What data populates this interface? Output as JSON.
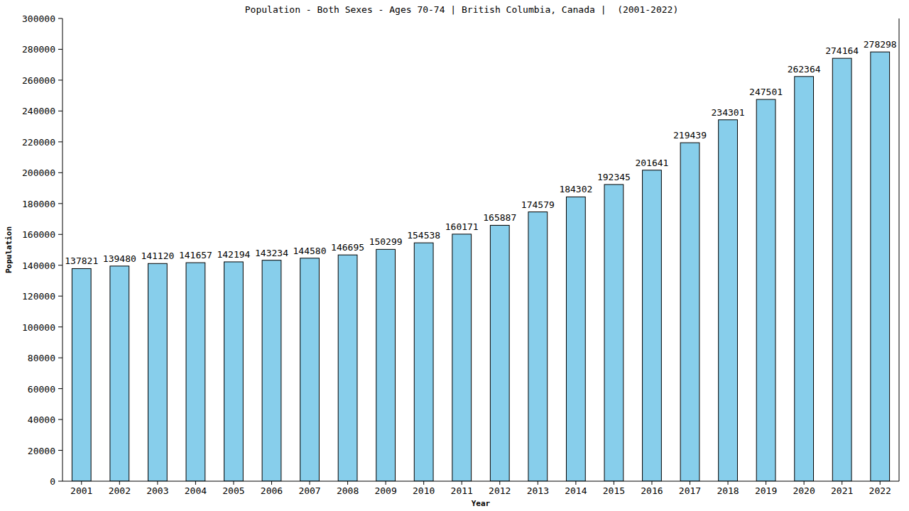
{
  "chart_data": {
    "type": "bar",
    "title": "Population - Both Sexes - Ages 70-74 | British Columbia, Canada |  (2001-2022)",
    "x_label": "Year",
    "y_label": "Population",
    "categories": [
      "2001",
      "2002",
      "2003",
      "2004",
      "2005",
      "2006",
      "2007",
      "2008",
      "2009",
      "2010",
      "2011",
      "2012",
      "2013",
      "2014",
      "2015",
      "2016",
      "2017",
      "2018",
      "2019",
      "2020",
      "2021",
      "2022"
    ],
    "values": [
      137821,
      139480,
      141120,
      141657,
      142194,
      143234,
      144580,
      146695,
      150299,
      154538,
      160171,
      165887,
      174579,
      184302,
      192345,
      201641,
      219439,
      234301,
      247501,
      262364,
      274164,
      278298
    ],
    "color": "#87ceeb",
    "ylim": [
      0,
      300000
    ],
    "yticks": [
      0,
      20000,
      40000,
      60000,
      80000,
      100000,
      120000,
      140000,
      160000,
      180000,
      200000,
      220000,
      240000,
      260000,
      280000,
      300000
    ],
    "grid": false,
    "data_labels": true
  }
}
